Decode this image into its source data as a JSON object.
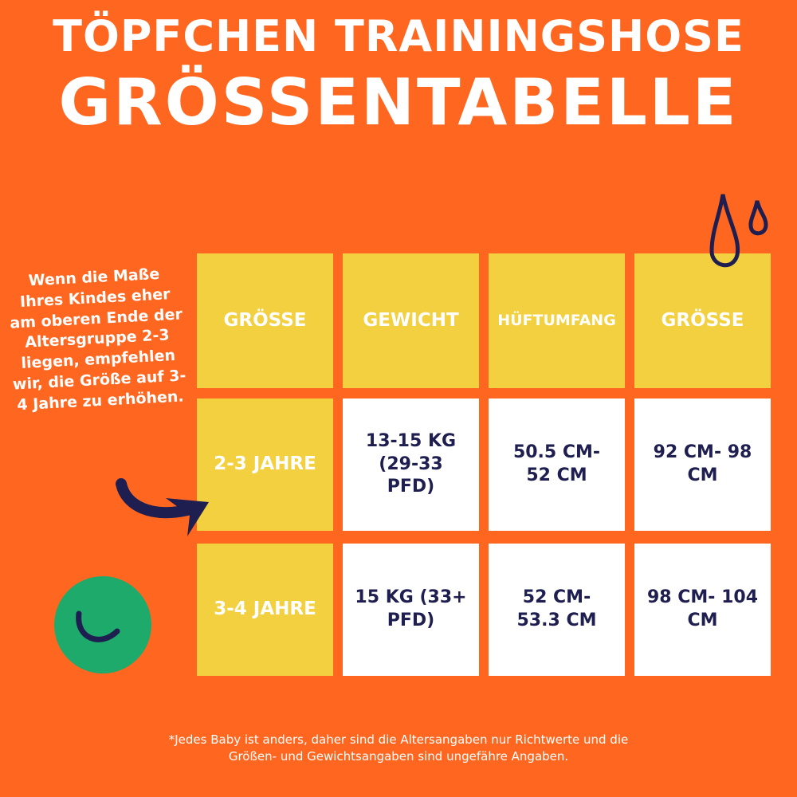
{
  "title_line1": "TÖPFCHEN TRAININGSHOSE",
  "title_line2": "GRÖSSENTABELLE",
  "note": "Wenn die Maße Ihres Kindes eher am oberen Ende der Altersgruppe 2-3 liegen, empfehlen wir, die Größe auf 3-4 Jahre zu erhöhen.",
  "table": {
    "headers": [
      "GRÖSSE",
      "GEWICHT",
      "HÜFTUMFANG",
      "GRÖSSE"
    ],
    "rows": [
      [
        "2-3 JAHRE",
        "13-15 KG (29-33 PFD)",
        "50.5 CM- 52 CM",
        "92 CM- 98 CM"
      ],
      [
        "3-4 JAHRE",
        "15 KG (33+ PFD)",
        "52 CM- 53.3 CM",
        "98 CM- 104 CM"
      ]
    ]
  },
  "footnote": "*Jedes Baby ist anders, daher sind die Altersangaben nur Richtwerte und die Größen- und Gewichtsangaben sind ungefähre Angaben.",
  "icons": [
    "water-drops-icon",
    "arrow-icon",
    "smiley-circle-icon"
  ],
  "colors": {
    "background": "#FF6720",
    "yellow": "#F2D03F",
    "navy": "#1F1E50",
    "green": "#1DAA6A"
  }
}
